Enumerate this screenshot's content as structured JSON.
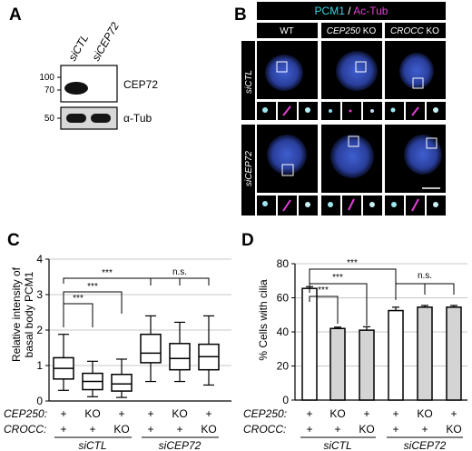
{
  "panels": {
    "A": {
      "letter": "A",
      "lanes": [
        "siCTL",
        "siCEP72"
      ],
      "blots": [
        {
          "label": "CEP72",
          "markers": [
            "100",
            "70"
          ]
        },
        {
          "label": "α-Tub",
          "markers": [
            "50"
          ]
        }
      ]
    },
    "B": {
      "letter": "B",
      "title_part1": "PCM1",
      "title_sep": " / ",
      "title_part2": "Ac-Tub",
      "title_color1": "#3ad6e6",
      "title_color2": "#e23fd6",
      "columns": [
        {
          "prefix": "",
          "label": "WT"
        },
        {
          "prefix": "CEP250",
          "label": " KO"
        },
        {
          "prefix": "CROCC",
          "label": " KO"
        }
      ],
      "rows": [
        "siCTL",
        "siCEP72"
      ]
    },
    "C": {
      "letter": "C",
      "ylabel_line1": "Relative intensity of",
      "ylabel_line2": "basal body PCM1",
      "ylim": [
        0,
        4
      ],
      "yticks": [
        "0",
        "1",
        "2",
        "3",
        "4"
      ],
      "significance": [
        "***",
        "***",
        "***",
        "n.s."
      ]
    },
    "D": {
      "letter": "D",
      "ylabel": "% Cells with cilia",
      "ylim": [
        0,
        80
      ],
      "yticks": [
        "0",
        "20",
        "40",
        "60",
        "80"
      ],
      "significance": [
        "***",
        "***",
        "***",
        "n.s."
      ]
    }
  },
  "genotype": {
    "row1_label": "CEP250:",
    "row2_label": "CROCC:",
    "row1": [
      "+",
      "KO",
      "+",
      "+",
      "KO",
      "+"
    ],
    "row2": [
      "+",
      "+",
      "KO",
      "+",
      "+",
      "KO"
    ],
    "groups": [
      "siCTL",
      "siCEP72"
    ]
  },
  "chart_data": [
    {
      "type": "box",
      "categories": [
        "siCTL WT",
        "siCTL CEP250 KO",
        "siCTL CROCC KO",
        "siCEP72 WT",
        "siCEP72 CEP250 KO",
        "siCEP72 CROCC KO"
      ],
      "boxes": [
        {
          "min": 0.3,
          "q1": 0.62,
          "median": 0.92,
          "q3": 1.22,
          "max": 1.88
        },
        {
          "min": 0.12,
          "q1": 0.32,
          "median": 0.55,
          "q3": 0.78,
          "max": 1.12
        },
        {
          "min": 0.1,
          "q1": 0.28,
          "median": 0.48,
          "q3": 0.75,
          "max": 1.18
        },
        {
          "min": 0.55,
          "q1": 1.08,
          "median": 1.35,
          "q3": 1.88,
          "max": 2.4
        },
        {
          "min": 0.55,
          "q1": 0.88,
          "median": 1.2,
          "q3": 1.62,
          "max": 2.22
        },
        {
          "min": 0.45,
          "q1": 0.88,
          "median": 1.25,
          "q3": 1.6,
          "max": 2.4
        }
      ],
      "ylabel": "Relative intensity of basal body PCM1",
      "ylim": [
        0,
        4
      ],
      "grid": true
    },
    {
      "type": "bar",
      "categories": [
        "siCTL WT",
        "siCTL CEP250 KO",
        "siCTL CROCC KO",
        "siCEP72 WT",
        "siCEP72 CEP250 KO",
        "siCEP72 CROCC KO"
      ],
      "values": [
        65.5,
        42,
        41,
        52.5,
        54.5,
        54.5
      ],
      "errors": [
        1.0,
        0.8,
        2.0,
        2.0,
        1.0,
        1.0
      ],
      "ylabel": "% Cells with cilia",
      "ylim": [
        0,
        80
      ],
      "grid": true
    }
  ]
}
